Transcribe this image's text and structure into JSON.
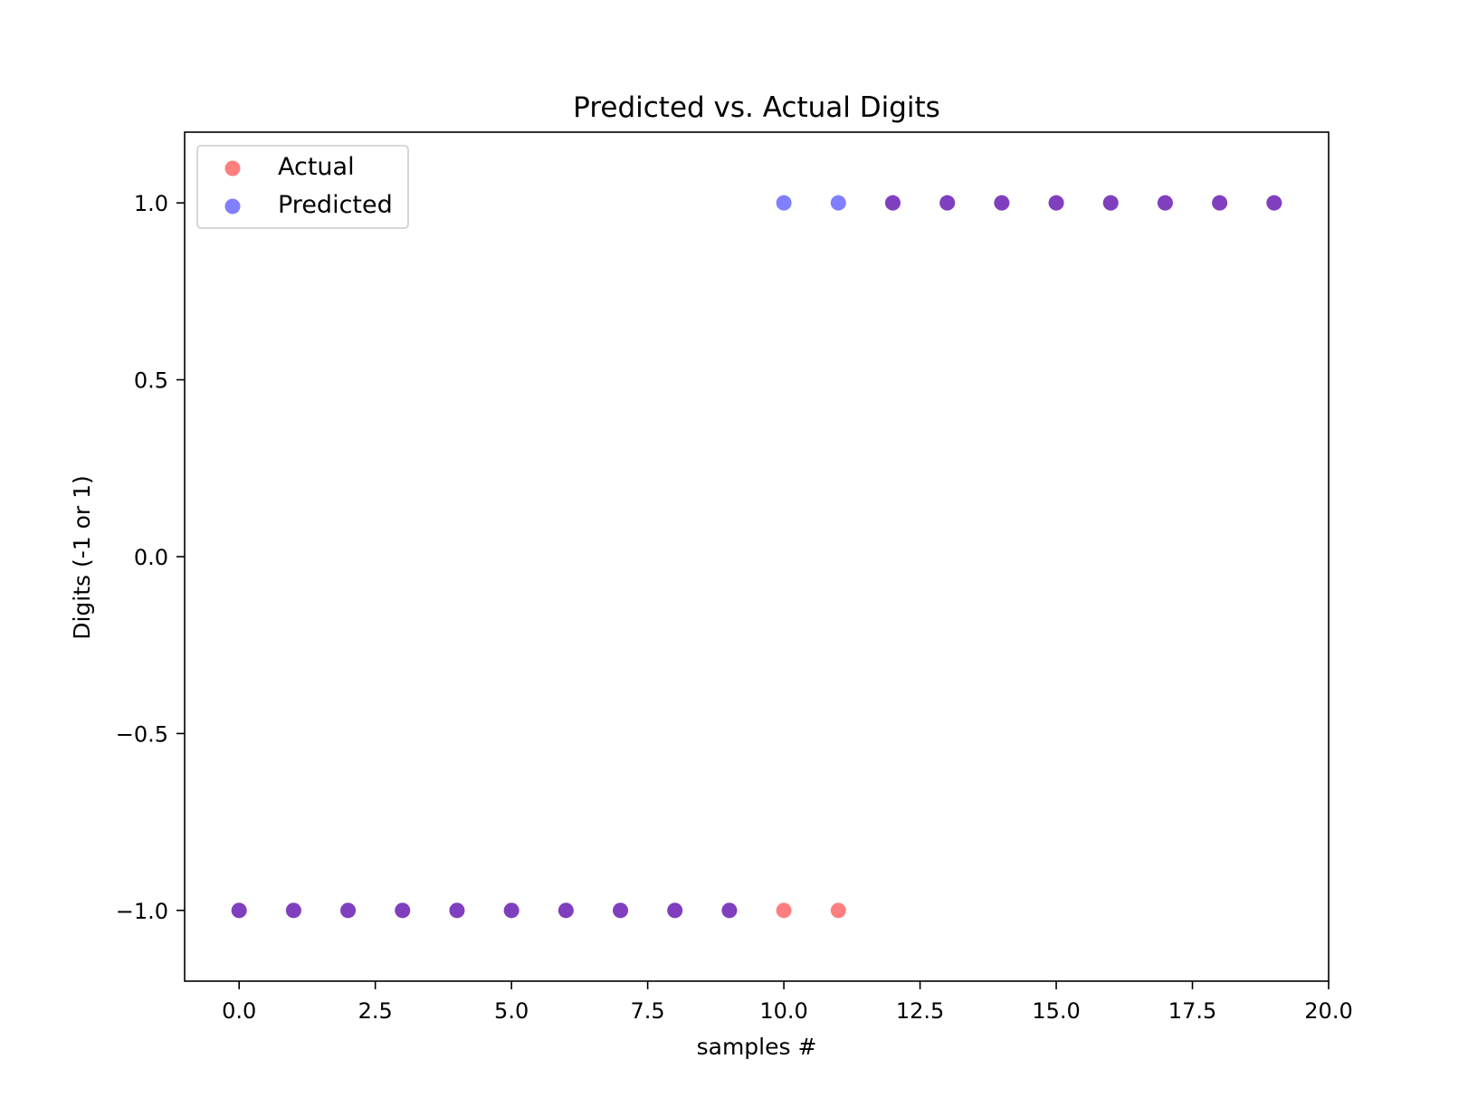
{
  "chart_data": {
    "type": "scatter",
    "title": "Predicted vs. Actual Digits",
    "xlabel": "samples #",
    "ylabel": "Digits (-1 or 1)",
    "xlim": [
      -1,
      20
    ],
    "ylim": [
      -1.2,
      1.2
    ],
    "x_ticks": [
      0.0,
      2.5,
      5.0,
      7.5,
      10.0,
      12.5,
      15.0,
      17.5,
      20.0
    ],
    "x_tick_labels": [
      "0.0",
      "2.5",
      "5.0",
      "7.5",
      "10.0",
      "12.5",
      "15.0",
      "17.5",
      "20.0"
    ],
    "y_ticks": [
      -1.0,
      -0.5,
      0.0,
      0.5,
      1.0
    ],
    "y_tick_labels": [
      "−1.0",
      "−0.5",
      "0.0",
      "0.5",
      "1.0"
    ],
    "grid": false,
    "legend_position": "upper-left",
    "series": [
      {
        "name": "Actual",
        "color": "#ff0000",
        "alpha": 0.5,
        "x": [
          0,
          1,
          2,
          3,
          4,
          5,
          6,
          7,
          8,
          9,
          10,
          11,
          12,
          13,
          14,
          15,
          16,
          17,
          18,
          19
        ],
        "y": [
          -1,
          -1,
          -1,
          -1,
          -1,
          -1,
          -1,
          -1,
          -1,
          -1,
          -1,
          -1,
          1,
          1,
          1,
          1,
          1,
          1,
          1,
          1
        ]
      },
      {
        "name": "Predicted",
        "color": "#0000ff",
        "alpha": 0.5,
        "x": [
          0,
          1,
          2,
          3,
          4,
          5,
          6,
          7,
          8,
          9,
          10,
          11,
          12,
          13,
          14,
          15,
          16,
          17,
          18,
          19
        ],
        "y": [
          -1,
          -1,
          -1,
          -1,
          -1,
          -1,
          -1,
          -1,
          -1,
          -1,
          1,
          1,
          1,
          1,
          1,
          1,
          1,
          1,
          1,
          1
        ]
      }
    ]
  }
}
